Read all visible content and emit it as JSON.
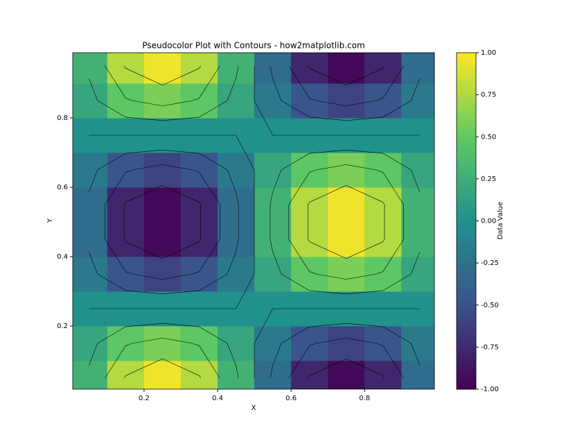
{
  "chart_data": {
    "type": "pcolor",
    "title": "Pseudocolor Plot with Contours - how2matplotlib.com",
    "x_label": "X",
    "y_label": "Y",
    "colorbar_label": "Data Value",
    "colormap": "viridis",
    "x": [
      0.05,
      0.15,
      0.25,
      0.35,
      0.45,
      0.55,
      0.65,
      0.75,
      0.85,
      0.95
    ],
    "y": [
      0.05,
      0.15,
      0.25,
      0.35,
      0.45,
      0.55,
      0.65,
      0.75,
      0.85,
      0.95
    ],
    "z": [
      [
        0.29,
        0.77,
        0.95,
        0.77,
        0.29,
        -0.29,
        -0.77,
        -0.95,
        -0.77,
        -0.29
      ],
      [
        0.18,
        0.48,
        0.59,
        0.48,
        0.18,
        -0.18,
        -0.48,
        -0.59,
        -0.48,
        -0.18
      ],
      [
        0,
        0,
        0,
        0,
        0,
        0,
        0,
        0,
        0,
        0
      ],
      [
        -0.18,
        -0.48,
        -0.59,
        -0.48,
        -0.18,
        0.18,
        0.48,
        0.59,
        0.48,
        0.18
      ],
      [
        -0.29,
        -0.77,
        -0.95,
        -0.77,
        -0.29,
        0.29,
        0.77,
        0.95,
        0.77,
        0.29
      ],
      [
        -0.29,
        -0.77,
        -0.95,
        -0.77,
        -0.29,
        0.29,
        0.77,
        0.95,
        0.77,
        0.29
      ],
      [
        -0.18,
        -0.48,
        -0.59,
        -0.48,
        -0.18,
        0.18,
        0.48,
        0.59,
        0.48,
        0.18
      ],
      [
        0,
        0,
        0,
        0,
        0,
        0,
        0,
        0,
        0,
        0
      ],
      [
        0.18,
        0.48,
        0.59,
        0.48,
        0.18,
        -0.18,
        -0.48,
        -0.59,
        -0.48,
        -0.18
      ],
      [
        0.29,
        0.77,
        0.95,
        0.77,
        0.29,
        -0.29,
        -0.77,
        -0.95,
        -0.77,
        -0.29
      ]
    ],
    "xlim": [
      0.006,
      0.99
    ],
    "ylim": [
      0.018,
      0.988
    ],
    "xticks": [
      0.2,
      0.4,
      0.6,
      0.8
    ],
    "yticks": [
      0.2,
      0.4,
      0.6,
      0.8
    ],
    "zlim": [
      -1,
      1
    ],
    "zticks": [
      {
        "value": 1,
        "label": "1.00"
      },
      {
        "value": 0.75,
        "label": "0.75"
      },
      {
        "value": 0.5,
        "label": "0.50"
      },
      {
        "value": 0.25,
        "label": "0.25"
      },
      {
        "value": 0,
        "label": "0.00"
      },
      {
        "value": -0.25,
        "label": "-0.25"
      },
      {
        "value": -0.5,
        "label": "-0.50"
      },
      {
        "value": -0.75,
        "label": "-0.75"
      },
      {
        "value": -1,
        "label": "-1.00"
      }
    ]
  }
}
